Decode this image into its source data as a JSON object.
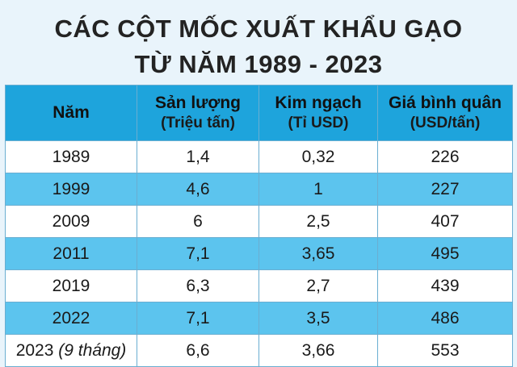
{
  "title_line1": "CÁC CỘT MỐC XUẤT KHẨU GẠO",
  "title_line2": "TỪ NĂM 1989 - 2023",
  "columns": [
    {
      "label": "Năm",
      "unit": ""
    },
    {
      "label": "Sản lượng",
      "unit": "(Triệu tấn)"
    },
    {
      "label": "Kim ngạch",
      "unit": "(Tỉ USD)"
    },
    {
      "label": "Giá bình quân",
      "unit": "(USD/tấn)"
    }
  ],
  "rows": [
    {
      "year": "1989",
      "year_note": "",
      "output": "1,4",
      "value": "0,32",
      "price": "226"
    },
    {
      "year": "1999",
      "year_note": "",
      "output": "4,6",
      "value": "1",
      "price": "227"
    },
    {
      "year": "2009",
      "year_note": "",
      "output": "6",
      "value": "2,5",
      "price": "407"
    },
    {
      "year": "2011",
      "year_note": "",
      "output": "7,1",
      "value": "3,65",
      "price": "495"
    },
    {
      "year": "2019",
      "year_note": "",
      "output": "6,3",
      "value": "2,7",
      "price": "439"
    },
    {
      "year": "2022",
      "year_note": "",
      "output": "7,1",
      "value": "3,5",
      "price": "486"
    },
    {
      "year": "2023",
      "year_note": "(9 tháng)",
      "output": "6,6",
      "value": "3,66",
      "price": "553"
    }
  ],
  "colors": {
    "header": "#1ea4dc",
    "stripe": "#5cc4ee",
    "background": "#e9f4fb"
  }
}
